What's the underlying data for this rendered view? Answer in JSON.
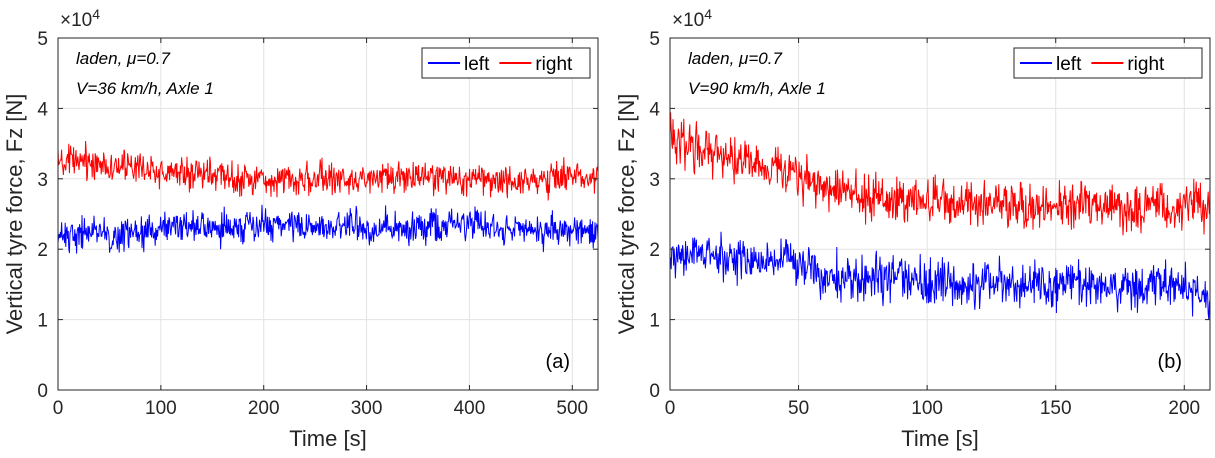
{
  "chart_data": [
    {
      "type": "line",
      "panel_label": "(a)",
      "annotation_lines": [
        "laden, μ=0.7",
        "V=36 km/h, Axle 1"
      ],
      "xlabel": "Time [s]",
      "ylabel": "Vertical tyre force, Fz [N]",
      "y_multiplier": "×10",
      "y_multiplier_exp": "4",
      "xlim": [
        0,
        525
      ],
      "ylim": [
        0,
        5
      ],
      "xticks": [
        "0",
        "100",
        "200",
        "300",
        "400",
        "500"
      ],
      "yticks": [
        "0",
        "1",
        "2",
        "3",
        "4",
        "5"
      ],
      "grid": true,
      "legend_position": "top-right",
      "series": [
        {
          "name": "left",
          "color": "#0000ff",
          "x": [
            0,
            25,
            50,
            75,
            100,
            125,
            150,
            175,
            200,
            225,
            250,
            275,
            300,
            325,
            350,
            375,
            400,
            425,
            450,
            475,
            500,
            525
          ],
          "y": [
            2.2,
            2.25,
            2.2,
            2.2,
            2.3,
            2.35,
            2.3,
            2.3,
            2.35,
            2.35,
            2.3,
            2.35,
            2.3,
            2.3,
            2.3,
            2.35,
            2.35,
            2.3,
            2.3,
            2.25,
            2.3,
            2.2
          ],
          "noise": 0.25
        },
        {
          "name": "right",
          "color": "#ff0000",
          "x": [
            0,
            25,
            50,
            75,
            100,
            125,
            150,
            175,
            200,
            225,
            250,
            275,
            300,
            325,
            350,
            375,
            400,
            425,
            450,
            475,
            500,
            525
          ],
          "y": [
            3.2,
            3.25,
            3.2,
            3.15,
            3.1,
            3.1,
            3.05,
            3.0,
            3.0,
            3.0,
            3.0,
            3.0,
            3.0,
            3.0,
            3.0,
            3.0,
            3.0,
            3.0,
            2.95,
            3.0,
            3.05,
            3.05
          ],
          "noise": 0.25
        }
      ]
    },
    {
      "type": "line",
      "panel_label": "(b)",
      "annotation_lines": [
        "laden, μ=0.7",
        "V=90 km/h, Axle 1"
      ],
      "xlabel": "Time [s]",
      "ylabel": "Vertical tyre force, Fz [N]",
      "y_multiplier": "×10",
      "y_multiplier_exp": "4",
      "xlim": [
        0,
        210
      ],
      "ylim": [
        0,
        5
      ],
      "xticks": [
        "0",
        "50",
        "100",
        "150",
        "200"
      ],
      "yticks": [
        "0",
        "1",
        "2",
        "3",
        "4",
        "5"
      ],
      "grid": true,
      "legend_position": "top-right",
      "series": [
        {
          "name": "left",
          "color": "#0000ff",
          "x": [
            0,
            10,
            20,
            30,
            40,
            50,
            60,
            70,
            80,
            90,
            100,
            110,
            120,
            130,
            140,
            150,
            160,
            170,
            180,
            190,
            200,
            210
          ],
          "y": [
            1.9,
            1.95,
            1.9,
            1.8,
            1.85,
            1.8,
            1.55,
            1.6,
            1.6,
            1.55,
            1.55,
            1.55,
            1.5,
            1.55,
            1.5,
            1.5,
            1.55,
            1.5,
            1.5,
            1.55,
            1.5,
            1.35
          ],
          "noise": 0.35
        },
        {
          "name": "right",
          "color": "#ff0000",
          "x": [
            0,
            10,
            20,
            30,
            40,
            50,
            60,
            70,
            80,
            90,
            100,
            110,
            120,
            130,
            140,
            150,
            160,
            170,
            180,
            190,
            200,
            210
          ],
          "y": [
            3.6,
            3.45,
            3.35,
            3.2,
            3.15,
            3.05,
            2.9,
            2.8,
            2.75,
            2.7,
            2.7,
            2.65,
            2.65,
            2.65,
            2.6,
            2.6,
            2.65,
            2.6,
            2.55,
            2.6,
            2.55,
            2.7
          ],
          "noise": 0.35
        }
      ]
    }
  ]
}
